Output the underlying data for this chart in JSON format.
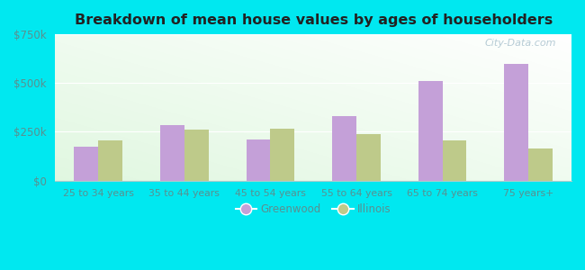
{
  "title": "Breakdown of mean house values by ages of householders",
  "categories": [
    "25 to 34 years",
    "35 to 44 years",
    "45 to 54 years",
    "55 to 64 years",
    "65 to 74 years",
    "75 years+"
  ],
  "greenwood": [
    175000,
    285000,
    210000,
    330000,
    510000,
    600000
  ],
  "illinois": [
    205000,
    260000,
    265000,
    240000,
    205000,
    165000
  ],
  "greenwood_color": "#c4a0d8",
  "illinois_color": "#beca8a",
  "ylim": [
    0,
    750000
  ],
  "yticks": [
    0,
    250000,
    500000,
    750000
  ],
  "ytick_labels": [
    "$0",
    "$250k",
    "$500k",
    "$750k"
  ],
  "outer_bg": "#00e8f0",
  "bar_width": 0.28,
  "legend_labels": [
    "Greenwood",
    "Illinois"
  ],
  "watermark": "City-Data.com"
}
